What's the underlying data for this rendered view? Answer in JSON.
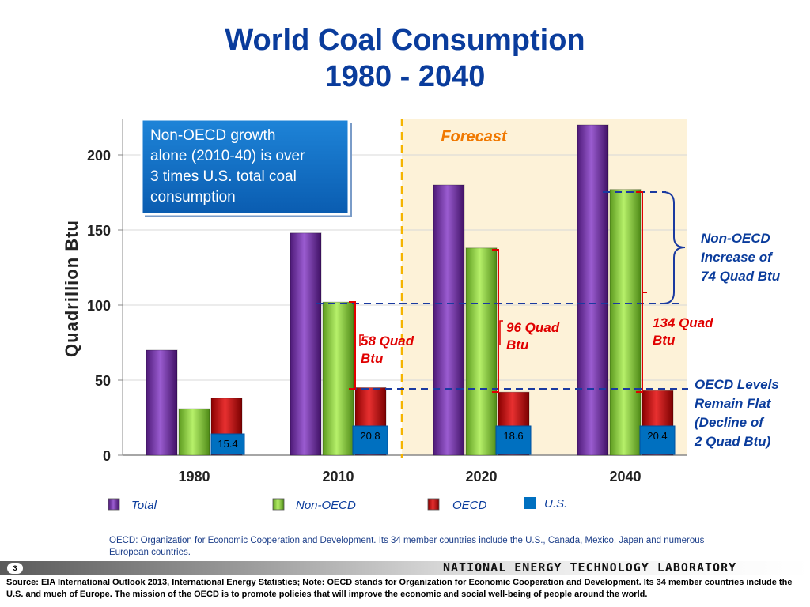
{
  "title_line1": "World Coal Consumption",
  "title_line2": "1980 - 2040",
  "chart_data": {
    "type": "bar",
    "categories": [
      "1980",
      "2010",
      "2020",
      "2040"
    ],
    "series": [
      {
        "name": "Total",
        "values": [
          70,
          148,
          180,
          220
        ]
      },
      {
        "name": "Non-OECD",
        "values": [
          31,
          102,
          138,
          177
        ]
      },
      {
        "name": "OECD",
        "values": [
          38,
          45,
          42,
          43
        ]
      }
    ],
    "us_values": [
      "15.4",
      "20.8",
      "18.6",
      "20.4"
    ],
    "us_legend": "U.S.",
    "ylabel": "Quadrillion Btu",
    "yticks": [
      "0",
      "50",
      "100",
      "150",
      "200"
    ],
    "ylim": [
      0,
      225
    ],
    "forecast_label": "Forecast",
    "annotations": {
      "callout_box": [
        "Non-OECD growth",
        "alone (2010-40) is over",
        "3 times U.S. total coal",
        "consumption"
      ],
      "non_oecd_increase": [
        "Non-OECD",
        "Increase of",
        "74 Quad Btu"
      ],
      "oecd_flat": [
        "OECD Levels",
        "Remain Flat",
        "(Decline of",
        "2 Quad Btu)"
      ],
      "growth_2010": [
        "58 Quad",
        "Btu"
      ],
      "growth_2020": [
        "96 Quad",
        "Btu"
      ],
      "growth_2040": [
        "134 Quad",
        "Btu"
      ]
    },
    "colors": {
      "total": "#7030a0",
      "non_oecd": "#92d050",
      "oecd": "#c00000",
      "us": "#0070c0",
      "forecast_bg": "#fdf2d8"
    }
  },
  "footnote": "OECD: Organization for Economic Cooperation and Development. Its 34 member countries include the U.S., Canada, Mexico, Japan and numerous European countries.",
  "page_number": "3",
  "footer_org": "NATIONAL ENERGY TECHNOLOGY LABORATORY",
  "source_text": "Source: EIA International Outlook 2013, International Energy Statistics; Note: OECD stands for Organization for Economic Cooperation and Development. Its 34 member countries include the U.S. and much of Europe. The mission of the OECD is to promote policies that will improve the economic and social well-being of people around the world."
}
